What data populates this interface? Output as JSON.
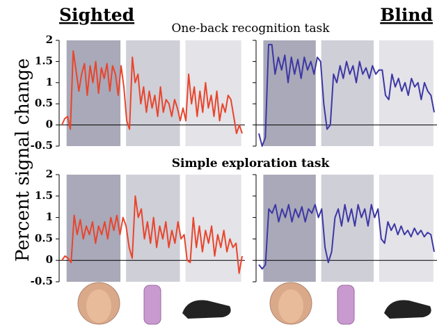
{
  "group_labels": [
    "Sighted",
    "Blind"
  ],
  "y_label": "Percent signal change",
  "row_titles": [
    "One-back recognition task",
    "Simple exploration task"
  ],
  "chart_data": [
    {
      "type": "line",
      "color": "#e8452c",
      "ylim": [
        -0.5,
        2
      ],
      "yticks": [
        -0.5,
        0,
        0.5,
        1,
        1.5,
        2
      ],
      "values": [
        0,
        0.15,
        0.2,
        -0.1,
        1.75,
        1.3,
        0.8,
        1.2,
        1.45,
        0.7,
        1.4,
        1.0,
        1.5,
        0.75,
        1.35,
        1.1,
        1.45,
        0.8,
        1.4,
        1.2,
        0.7,
        1.4,
        0.9,
        0.1,
        -0.1,
        1.6,
        1.0,
        1.2,
        0.5,
        0.9,
        0.3,
        0.8,
        0.4,
        0.7,
        0.2,
        0.9,
        0.3,
        0.6,
        0.5,
        0.2,
        0.6,
        0.4,
        0.1,
        0.4,
        0.1,
        1.2,
        0.5,
        0.9,
        0.2,
        0.8,
        0.3,
        1.0,
        0.4,
        0.7,
        0.2,
        0.8,
        0.1,
        0.5,
        0.3,
        0.7,
        0.6,
        0.2,
        -0.2,
        0,
        -0.2
      ]
    },
    {
      "type": "line",
      "color": "#3d37a3",
      "ylim": [
        -0.5,
        2
      ],
      "yticks": [
        -0.5,
        0,
        0.5,
        1,
        1.5,
        2
      ],
      "values": [
        -0.2,
        -0.5,
        -0.3,
        1.9,
        1.9,
        1.2,
        1.6,
        1.3,
        1.65,
        1.0,
        1.6,
        1.2,
        1.55,
        1.1,
        1.6,
        1.3,
        1.5,
        1.2,
        1.6,
        1.5,
        0.5,
        -0.1,
        0,
        1.2,
        1.0,
        1.4,
        1.1,
        1.5,
        1.2,
        1.4,
        1.0,
        1.5,
        1.2,
        1.35,
        1.1,
        1.4,
        1.2,
        1.3,
        1.3,
        0.7,
        0.6,
        1.2,
        0.9,
        1.1,
        0.8,
        1.0,
        0.7,
        1.1,
        0.9,
        1.0,
        0.6,
        1.0,
        0.8,
        0.7,
        0.3
      ]
    },
    {
      "type": "line",
      "color": "#e8452c",
      "ylim": [
        -0.5,
        2
      ],
      "yticks": [
        -0.5,
        0,
        0.5,
        1,
        1.5,
        2
      ],
      "values": [
        0,
        0.1,
        0.05,
        -0.05,
        1.05,
        0.6,
        0.95,
        0.5,
        0.8,
        0.6,
        0.9,
        0.4,
        0.8,
        0.6,
        0.9,
        0.5,
        1.0,
        0.7,
        1.05,
        0.6,
        1.0,
        0.8,
        0.3,
        0.05,
        1.5,
        1.0,
        1.2,
        0.5,
        0.9,
        0.4,
        1.0,
        0.3,
        0.8,
        0.5,
        0.9,
        0.3,
        0.7,
        0.4,
        0.9,
        0.5,
        0.6,
        0,
        -0.05,
        1.0,
        0.3,
        0.8,
        0.2,
        0.7,
        0.4,
        0.8,
        0.1,
        0.6,
        0.3,
        0.7,
        0.2,
        0.5,
        0.3,
        0.4,
        -0.3,
        0.1
      ]
    },
    {
      "type": "line",
      "color": "#3d37a3",
      "ylim": [
        -0.5,
        2
      ],
      "yticks": [
        -0.5,
        0,
        0.5,
        1,
        1.5,
        2
      ],
      "values": [
        -0.1,
        -0.2,
        -0.1,
        1.2,
        1.1,
        1.3,
        0.9,
        1.2,
        1.0,
        1.3,
        0.9,
        1.2,
        1.0,
        1.25,
        0.9,
        1.2,
        1.1,
        1.3,
        1.0,
        1.2,
        0.3,
        -0.05,
        0.2,
        1.0,
        1.2,
        0.8,
        1.3,
        0.9,
        1.2,
        0.8,
        1.3,
        1.0,
        1.2,
        0.8,
        1.3,
        1.0,
        1.2,
        0.5,
        0.4,
        0.9,
        0.7,
        0.85,
        0.6,
        0.8,
        0.6,
        0.7,
        0.55,
        0.75,
        0.6,
        0.7,
        0.55,
        0.65,
        0.6,
        0.2
      ]
    }
  ]
}
